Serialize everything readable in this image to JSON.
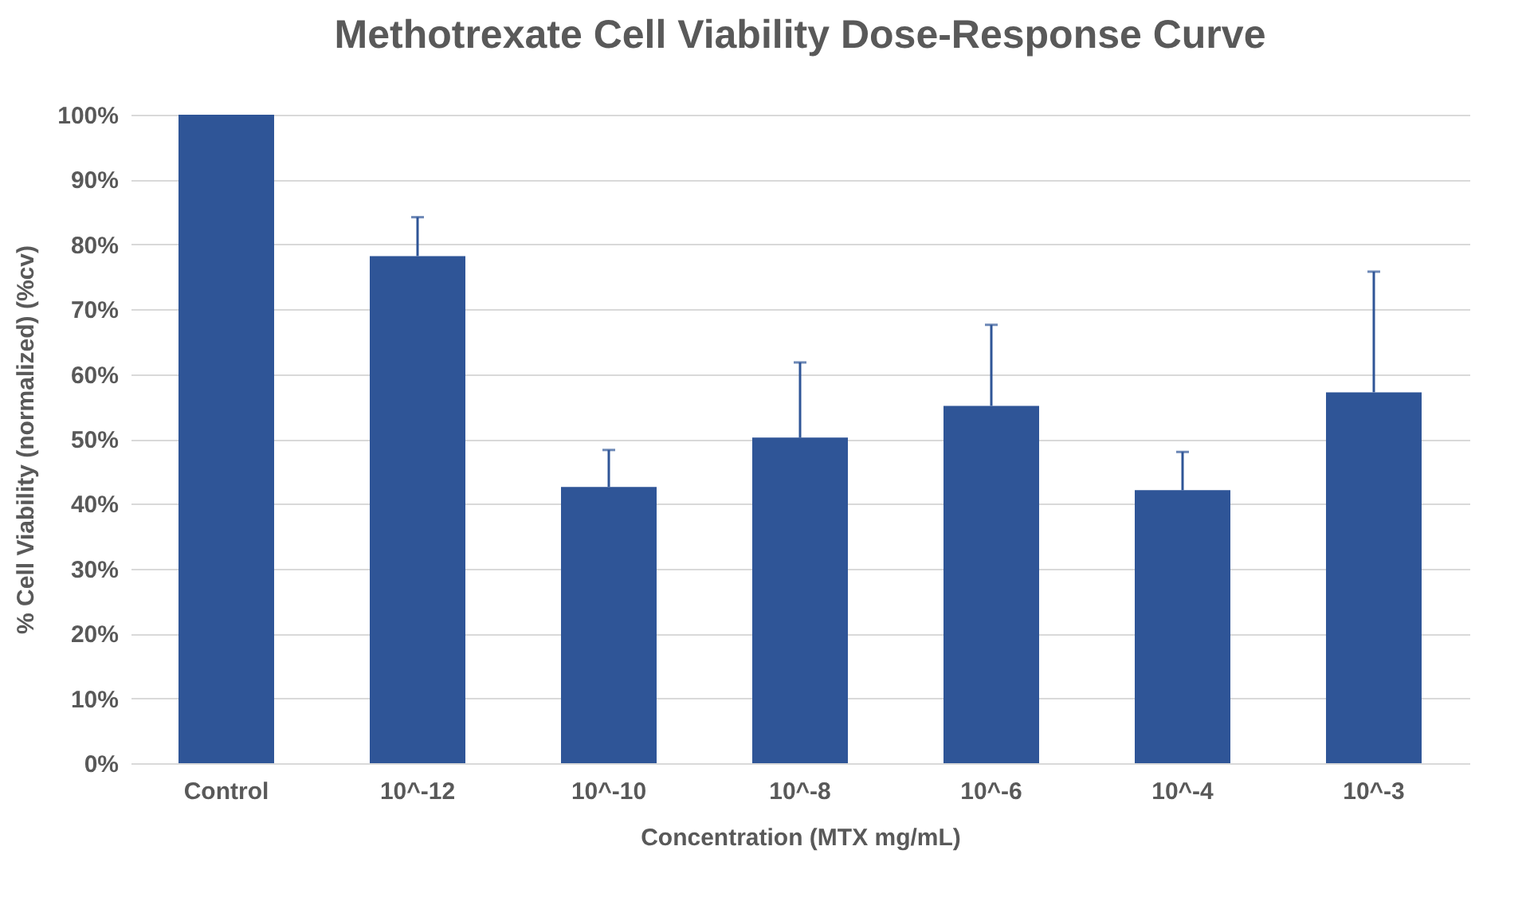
{
  "chart_data": {
    "type": "bar",
    "title": "Methotrexate Cell Viability Dose-Response Curve",
    "xlabel": "Concentration (MTX mg/mL)",
    "ylabel": "% Cell Viability (normalized) (%cv)",
    "categories": [
      "Control",
      "10^-12",
      "10^-10",
      "10^-8",
      "10^-6",
      "10^-4",
      "10^-3"
    ],
    "values": [
      100,
      78.2,
      42.6,
      50.2,
      55.1,
      42.1,
      57.2
    ],
    "errors": [
      null,
      [
        78.2,
        84.2
      ],
      [
        42.6,
        48.3
      ],
      [
        50.2,
        61.8
      ],
      [
        55.1,
        67.6
      ],
      [
        42.1,
        48.0
      ],
      [
        57.2,
        75.8
      ]
    ],
    "color": "#2f5597",
    "ylim": [
      0,
      100
    ],
    "yticks": [
      {
        "value": 0,
        "label": "0%"
      },
      {
        "value": 10,
        "label": "10%"
      },
      {
        "value": 20,
        "label": "20%"
      },
      {
        "value": 30,
        "label": "30%"
      },
      {
        "value": 40,
        "label": "40%"
      },
      {
        "value": 50,
        "label": "50%"
      },
      {
        "value": 60,
        "label": "60%"
      },
      {
        "value": 70,
        "label": "70%"
      },
      {
        "value": 80,
        "label": "80%"
      },
      {
        "value": 90,
        "label": "90%"
      },
      {
        "value": 100,
        "label": "100%"
      }
    ],
    "grid": "y"
  }
}
